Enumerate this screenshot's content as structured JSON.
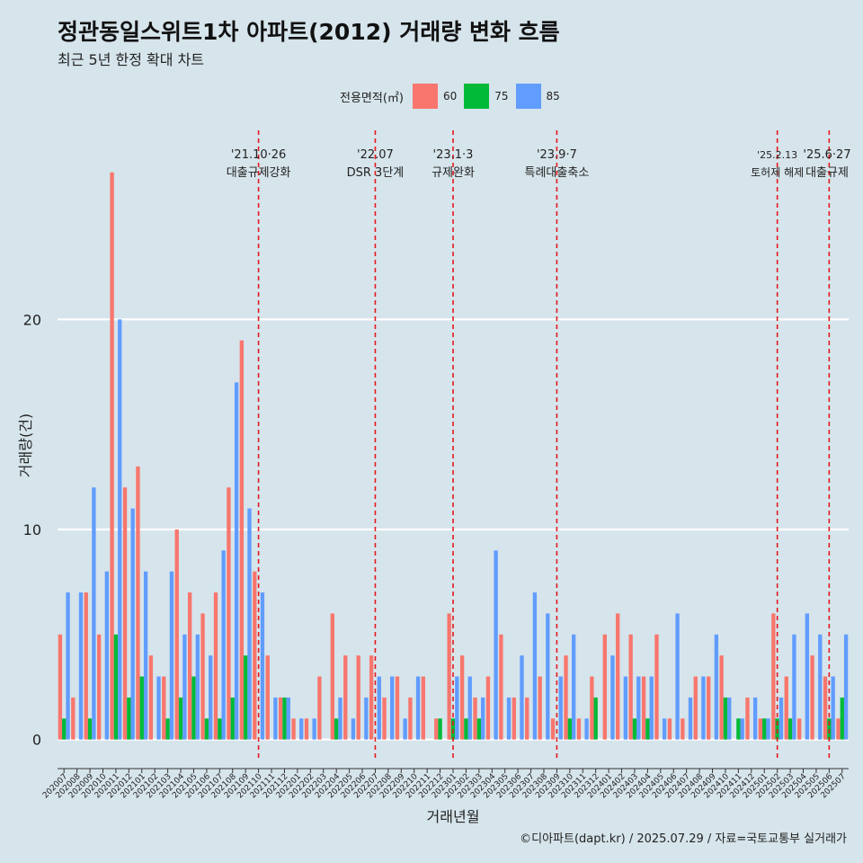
{
  "title": "정관동일스위트1차 아파트(2012) 거래량 변화 흐름",
  "subtitle": "최근 5년 한정 확대 차트",
  "caption": "©디아파트(dapt.kr) / 2025.07.29 / 자료=국토교통부 실거래가",
  "chart_data": {
    "type": "bar",
    "xlabel": "거래년월",
    "ylabel": "거래량(건)",
    "ylim": [
      -1,
      29
    ],
    "yticks": [
      0,
      10,
      20
    ],
    "grid": true,
    "legend": {
      "title": "전용면적(㎡)",
      "position": "top"
    },
    "categories": [
      "202007",
      "202008",
      "202009",
      "202010",
      "202011",
      "202012",
      "202101",
      "202102",
      "202103",
      "202104",
      "202105",
      "202106",
      "202107",
      "202108",
      "202109",
      "202110",
      "202111",
      "202112",
      "202201",
      "202202",
      "202203",
      "202204",
      "202205",
      "202206",
      "202207",
      "202208",
      "202209",
      "202210",
      "202211",
      "202212",
      "202301",
      "202302",
      "202303",
      "202304",
      "202305",
      "202306",
      "202307",
      "202308",
      "202309",
      "202310",
      "202311",
      "202312",
      "202401",
      "202402",
      "202403",
      "202404",
      "202405",
      "202406",
      "202407",
      "202408",
      "202409",
      "202410",
      "202411",
      "202412",
      "202501",
      "202502",
      "202503",
      "202504",
      "202505",
      "202506",
      "202507"
    ],
    "series": [
      {
        "name": "60",
        "color": "#f8766d",
        "values": [
          5,
          2,
          7,
          5,
          27,
          12,
          13,
          4,
          3,
          10,
          7,
          6,
          7,
          12,
          19,
          8,
          4,
          2,
          1,
          1,
          3,
          6,
          4,
          4,
          4,
          2,
          3,
          2,
          3,
          1,
          6,
          4,
          2,
          3,
          5,
          2,
          2,
          3,
          1,
          4,
          1,
          3,
          5,
          6,
          5,
          3,
          5,
          1,
          1,
          3,
          3,
          4,
          0,
          2,
          1,
          6,
          3,
          1,
          4,
          3,
          1
        ]
      },
      {
        "name": "75",
        "color": "#00ba38",
        "values": [
          1,
          0,
          1,
          0,
          5,
          2,
          3,
          0,
          1,
          2,
          3,
          1,
          1,
          2,
          4,
          0,
          0,
          2,
          0,
          0,
          0,
          1,
          0,
          0,
          0,
          0,
          0,
          0,
          0,
          1,
          1,
          1,
          1,
          0,
          0,
          0,
          0,
          0,
          0,
          1,
          0,
          2,
          0,
          0,
          1,
          1,
          0,
          0,
          0,
          0,
          0,
          2,
          1,
          0,
          1,
          1,
          1,
          0,
          0,
          1,
          2
        ]
      },
      {
        "name": "85",
        "color": "#619cff",
        "values": [
          7,
          7,
          12,
          8,
          20,
          11,
          8,
          3,
          8,
          5,
          5,
          4,
          9,
          17,
          11,
          7,
          2,
          2,
          1,
          1,
          0,
          2,
          1,
          2,
          3,
          3,
          1,
          3,
          0,
          0,
          3,
          3,
          2,
          9,
          2,
          4,
          7,
          6,
          3,
          5,
          1,
          0,
          4,
          3,
          3,
          3,
          1,
          6,
          2,
          3,
          5,
          2,
          1,
          2,
          1,
          2,
          5,
          6,
          5,
          3,
          5
        ]
      }
    ],
    "annotations": [
      {
        "x": "202110",
        "date": "'21.10·26",
        "label": "대출규제강화"
      },
      {
        "x": "202207",
        "date": "'22.07",
        "label": "DSR 3단계"
      },
      {
        "x": "202301",
        "date": "'23.1·3",
        "label": "규제완화"
      },
      {
        "x": "202309",
        "date": "'23.9·7",
        "label": "특례대출축소"
      },
      {
        "x": "202502",
        "date": "'25.2.13",
        "label": "토허제 해제"
      },
      {
        "x": "202506",
        "date": "'25.6·27",
        "label": "대출규제"
      }
    ]
  }
}
